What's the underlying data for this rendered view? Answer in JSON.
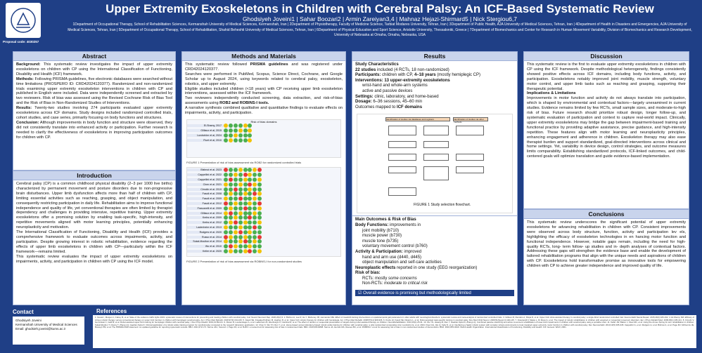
{
  "header": {
    "title": "Upper Extremity Exoskeletons in Children with Cerebral Palsy: An ICF-Based Systematic Review",
    "authors": "Ghodsiyeh Joveini1 | Sahar Boozari2 | Armin Zareiyan3,4 | Mahnaz Hejazi-Shirmard5 | Nick Stergiou6,7",
    "affiliations": "1Department of Occupational Therapy, School of Rehabilitation Sciences, Kermanshah University of Medical Sciences, Kermanshah, Iran | 2Department of Physiotherapy, Faculty of Medicine Science, Tarbiat Modares University, Tehran, Iran | 3Department of Public Health, AJA University of Medical Sciences, Tehran, Iran | 4Department of Health in Disasters and Emergencies, AJA University of Medical Sciences, Tehran, Iran | 5Department of Occupational Therapy, School of Rehabilitation, Shahid Beheshti University of Medical Sciences, Tehran, Iran | 6Department of Physical Education and Sport Science, Aristotle University, Thessaloniki, Greece | 7Department of Biomechanics and Center for Research in Human Movement Variability, Division of Biomechanics and Research Development, University of Nebraska at Omaha, Omaha, Nebraska, USA",
    "proposal": "Proposal code: 4030257"
  },
  "abstract": {
    "heading": "Abstract",
    "background_label": "Background:",
    "background": "This systematic review investigates the impact of upper extremity exoskeletons on children with CP using the International Classification of Functioning, Disability and Health (ICF) framework.",
    "methods_label": "Methods:",
    "methods": "Following PRISMA guidelines, five electronic databases were searched without time limitations (PROSPERO ID: CRD42024120377). Randomized and non-randomized trials examining upper extremity exoskeleton interventions in children with CP and published in English were included. Data were independently screened and extracted by two reviewers. Risk of bias was assessed using the Revised Cochrane Risk of Bias Tool and the Risk of Bias in Non-Randomized Studies of Interventions.",
    "results_label": "Results:",
    "results": "Twenty-two studies involving 274 participants evaluated upper extremity exoskeletons across ICF domains. Study designs included randomized controlled trials, cohort studies, and case series, primarily focusing on body functions and structures.",
    "conclusion_label": "Conclusion:",
    "conclusion": "Although improvements in body function and structure were observed, they did not consistently translate into enhanced activity or participation. Further research is needed to clarify the effectiveness of exoskeletons in improving participation outcomes for children with CP."
  },
  "introduction": {
    "heading": "Introduction",
    "p1": "Cerebral palsy (CP) is a common childhood physical disability (2–3 per 1000 live births) characterized by permanent movement and posture disorders due to non-progressive brain disturbances. Upper limb dysfunction affects more than half of children with CP, limiting essential activities such as reaching, grasping, and object manipulation, and consequently restricting participation in daily life. Rehabilitation aims to improve functional independence and quality of life, yet conventional therapies are often limited by therapist dependency and challenges in providing intensive, repetitive training. Upper extremity exoskeletons offer a promising solution by enabling task-specific, high-intensity, and repetitive movements aligned with motor learning principles, potentially enhancing neuroplasticity and motivation.",
    "p2": "The International Classification of Functioning, Disability and Health (ICF) provides a comprehensive framework to evaluate outcomes across impairments, activity, and participation. Despite growing interest in robotic rehabilitation, evidence regarding the effects of upper limb exoskeletons in children with CP—particularly within the ICF framework—remains limited.",
    "p3": "This systematic review evaluates the impact of upper extremity exoskeletons on impairments, activity, and participation in children with CP using the ICF model."
  },
  "methods": {
    "heading": "Methods and Materials",
    "text1": "This systematic review followed",
    "prisma": "PRISMA guidelines",
    "text2": "and was registered under CRD42024120377.",
    "text3": "Searches were performed in PubMed, Scopus, Science Direct, Cochrane, and Google Scholar up to August 2024, using keywords related to cerebral palsy, exoskeleton, robotics, and upper extremity.",
    "text4": "Eligible studies included children (<18 years) with CP receiving upper limb exoskeleton interventions, assessed within the ICF framework.",
    "text5": "Two reviewers independently conducted screening, data extraction, and risk-of-bias assessments using",
    "rob": "ROB2 and ROBINS-I tools.",
    "text6": "A narrative synthesis combined qualitative and quantitative findings to evaluate effects on impairments, activity, and participation.",
    "fig1_title": "Risk of bias domains",
    "fig1_caption": "FIGURE 1 Presentation of risk of bias assessment via ROB2 for randomized controlled trials",
    "fig2_caption": "FIGURE 2 Presentation of risk of bias assessment via ROBINS-I for non-randomized studies",
    "rob_studies": [
      "El-Shamy, 2017",
      "Gilliaux et al, 2015",
      "Lundström et al, 2024",
      "Fluet et al, 2010"
    ],
    "robins_studies": [
      "Bishnoi et al. 2023",
      "Cappellini et al. 2022",
      "Cappellini et al. 2021",
      "Chen et al. 2021",
      "Cimolin et al. 2019",
      "Fasoli et al. 2008",
      "Fasoli et al. 2009",
      "Fasoli et al. 2012",
      "Frascarelli et al. 2009",
      "Gilliaux et al. 2014",
      "Krebs et al. 2009",
      "Krebs et al. 2012",
      "Ladenheim et al. 2013",
      "Rodgers et al. 2020",
      "Russo et al. 2014",
      "Sukal-Moulton et al. 2014",
      "Wu et al. 2010",
      "Keller et al. 2020"
    ]
  },
  "results": {
    "heading": "Results",
    "study_char": "Study Characteristics",
    "l1_b": "22 studies",
    "l1": "included (4 RCTs, 18 non-randomized)",
    "l2_b": "Participants:",
    "l2_1": "children with CP,",
    "l2_b2": "4–18 years",
    "l2_2": "(mostly hemiplegic CP)",
    "l3_b": "Interventions: 13 upper-extremity exoskeletons",
    "l4": "wrist-hand and whole-arm systems",
    "l5": "active and passive devices",
    "l6_b": "Settings:",
    "l6": "clinic, laboratory, and home-based",
    "l7_b": "Dosage:",
    "l7": "6–36 sessions, 45–60 min",
    "l8": "Outcomes mapped to",
    "l8_b": "ICF domains",
    "flow_caption": "FIGURE 1 Study selection flowchart.",
    "flow_id": "Identification of studies via databases and registers",
    "flow_other": "Identification of studies via other methods",
    "outcomes_h": "Main Outcomes & Risk of Bias",
    "bf_b": "Body Functions:",
    "bf": "improvements in",
    "bf1": "joint mobility (b710)",
    "bf2": "muscle power (b730)",
    "bf3": "muscle tone (b735)",
    "bf4": "voluntary movement control (b760)",
    "ap_b": "Activity & Participation:",
    "ap": "improved",
    "ap1": "hand and arm use (d440, d445)",
    "ap2": "object manipulation and self-care activities",
    "neuro_b": "Neuroplastic effects",
    "neuro": "reported in one study (EEG reorganization)",
    "rob_b": "Risk of bias:",
    "rob1": "RCTs: mostly",
    "rob1_i": "some concerns",
    "rob2": "Non-RCTs:",
    "rob2_i": "moderate to critical risk",
    "overall": "Overall evidence is promising but methodologically limited"
  },
  "discussion": {
    "heading": "Discussion",
    "p1": "This systematic review is the first to evaluate upper extremity exoskeletons in children with CP using the ICF framework. Despite methodological heterogeneity, findings consistently showed positive effects across ICF domains, including body functions, activity, and participation. Exoskeletons notably improved joint mobility, muscle strength, voluntary motor control, and upper limb tasks such as reaching and grasping, supporting their therapeutic potential.",
    "impl": "Implications & Limitations",
    "p2": "Improvements in motor function and activity do not always translate into participation, which is shaped by environmental and contextual factors—largely unexamined in current studies. Evidence remains limited by few RCTs, small sample sizes, and moderate-to-high risk of bias. Future research should prioritize robust design, longer follow-up, and systematic evaluation of participation and context to capture real-world impact. Clinically, upper extremity exoskeletons may bridge the gap between impairment-based training and functional practice by providing adaptive assistance, precise guidance, and high-intensity repetition. These features align with motor learning and neuroplasticity principles, enhancing engagement and adherence in children. Exoskeleton therapy may also ease therapist burden and support standardized, goal-directed interventions across clinical and home settings. Yet, variability in device design, control strategies, and outcome measures limits comparability. Establishing standardized protocols, ICF-linked outcomes, and child-centered goals will optimize translation and guide evidence-based implementation."
  },
  "conclusions": {
    "heading": "Conclusions",
    "p1": "This systematic review underscores the significant potential of upper extremity exoskeletons for advancing rehabilitation in children with CP. Consistent improvements were observed across body structure, function, activity and participation lev els, highlighting the efficacy of exoskeleton technologies in en hancing motor function and functional independence. However, notable gaps remain, including the need for high- quality RCTs, long- term follow- up studies and in- depth analyses of contextual factors. Addressing these gaps will strengthen the evidence base and enable the development of tailored rehabilitation programs that align with the unique needs and aspirations of children with CP. Exoskeletons hold transformative promise as innovative tools for empowering children with CP to achieve greater independence and improved quality of life."
  },
  "contact": {
    "heading": "Contact",
    "name": "Ghodsiyeh Joveini",
    "org": "Kermanshah University of Medical Sciences",
    "email": "Email: ghodsieh.joveini@kums.ac.ir"
  },
  "references": {
    "heading": "References",
    "text": "1. Novak I, Morgan C, Fahey M, et al. State of the evidence traffic lights 2019: systematic review of interventions for preventing and treating children with cerebral palsy. Curr Neurol Neurosci Rep. 2020;20(2):3. 2. Bishnoi A, Lee R, Hu Y, Mahoney JR, Hernandez ME. Effect of treadmill training interventions on spatiotemporal gait parameters in older adults with neurological disorders: systematic review and meta-analysis of randomized controlled trials. 3. Gilliaux M, Renders A, Dispa D, et al. Upper limb robot-assisted therapy in cerebral palsy: a single-blind randomized controlled trial. Neurorehabil Neural Repair. 2015;29(2):183-192. 4. El-Shamy SM. Efficacy of Armeo robotic therapy versus conventional therapy on upper limb function in children with hemiplegic cerebral palsy. Am J Phys Med Rehabil. 2018;97(3):164-169. 5. Fasoli SE, Fragala-Pinkham M, Hughes R, et al. Upper limb robotic therapy for children with hemiplegia. Am J Phys Med Rehabil. 2008;87(11):929-936. 6. Krebs HI, Fasoli SE, Dipietro L, et al. Robot-assisted task-specific training in cerebral palsy. Dev Med Child Neurol. 2009;51(Suppl 4):140-145. 7. Frascarelli F, Masia L, Di Rosa G, et al. The impact of robotic rehabilitation in children with acquired or congenital movement disorders. Eur J Phys Rehabil Med. 2009;45(1):135-141. 8. Cimolin V, Germiniasi C, Galli M, et al. Robot-assisted upper limb training for hemiplegic children with cerebral palsy. J Dev Phys Disabil. 2019;31:89-101. 9. Russo R, Loudenslager A, et al. Ladenheim B, Altenburger P, Cardinal R, et al. The effect of random or sequential presentation of targets during robot-assisted therapy on children. NeuroRehabilitation. 2013;33(1):25-31. 10. Wu YN, Hwang M, Ren Y, Gaebler-Spira D, Zhang LQ. Combined passive stretching and active movement rehabilitation of lower-limb impairments in children with cerebral palsy using a portable robot. 11. Keller JW, Balzer J, Fluet MC, et al. Using the Armeo Spring for arm rehabilitation in children. Sukal-Moulton T, Clancy T, Zhang LQ, Gaebler-Spira D. Clinical application of a robotic ankle training program for cerebral palsy compared to the research laboratory application. 12. Chen K, Wu YN, Ren Y, et al. Home-based versus laboratory-based robotic ankle training for children with cerebral palsy: a pilot randomized comparative trial. Lundström E, et al. 2024. Fluet GG, Qiu Q, Kelly D, et al. Interfacing a haptic robotic system with complex virtual environments to treat impaired upper extremity motor function in children with cerebral palsy. Dev Neurorehabil. 2010;13(5):335-345. Cappellini G, et al. Rodgers H, et al. Bishnoi A, et al. Page MJ, McKenzie JE, Bossuyt PM, et al. The PRISMA 2020 statement: an updated guideline for reporting systematic reviews. BMJ. 2021;372:n71. Sterne JAC, Savović J, Page MJ, et al. RoB 2: a revised tool for assessing risk of bias in randomised trials. BMJ. 2019;366:l4898. Sterne JA, Hernán MA, Reeves BC, et al. ROBINS-I: a tool for assessing risk of bias in non-randomised studies of interventions. BMJ. 2016;355:i4919. World Health Organization. International Classification of Functioning, Disability and Health: ICF. Geneva: WHO; 2001."
  },
  "colors": {
    "header": "#1f3f86",
    "section": "#c9d4ec",
    "low": "#4caf50",
    "some": "#f2c200",
    "high": "#e53935"
  }
}
